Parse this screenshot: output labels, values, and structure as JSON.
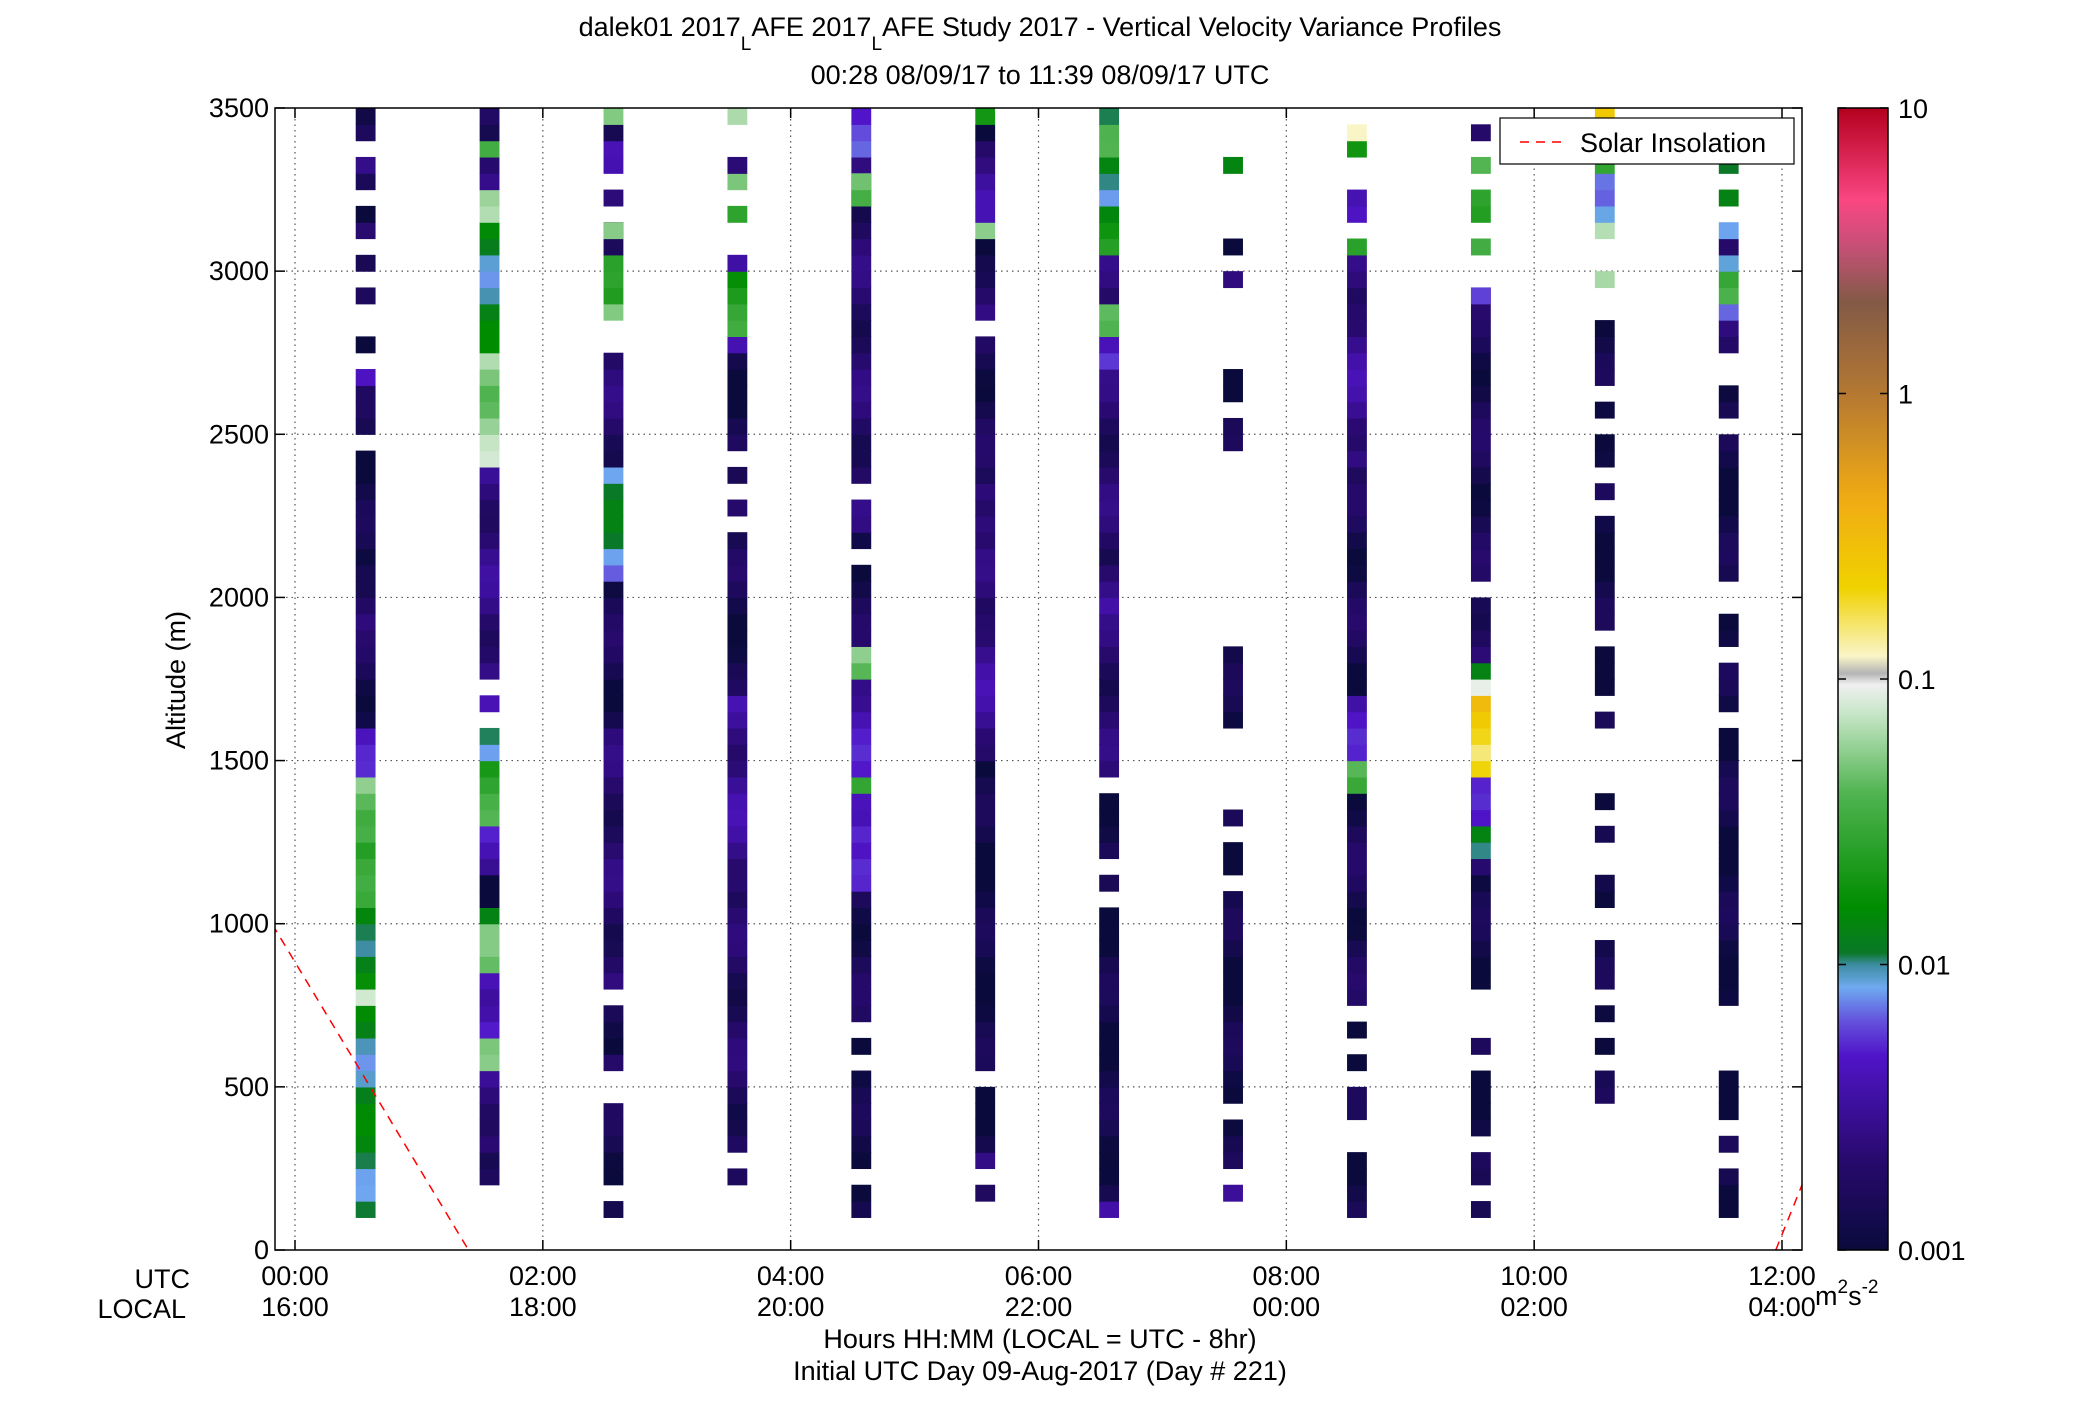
{
  "chart_data": {
    "type": "heatmap",
    "title_line1": {
      "prefix": "dalek01 2017",
      "sub1": "L",
      "middle": "AFE 2017",
      "sub2": "L",
      "suffix": "AFE Study 2017 - Vertical Velocity Variance Profiles"
    },
    "title_line2": "00:28 08/09/17 to 11:39 08/09/17  UTC",
    "ylabel": "Altitude (m)",
    "ylim": [
      0,
      3500
    ],
    "yticks": [
      0,
      500,
      1000,
      1500,
      2000,
      2500,
      3000,
      3500
    ],
    "xlim_hours": [
      0,
      12
    ],
    "xtick_hours": [
      0,
      2,
      4,
      6,
      8,
      10,
      12
    ],
    "xtick_utc": [
      "00:00",
      "02:00",
      "04:00",
      "06:00",
      "08:00",
      "10:00",
      "12:00"
    ],
    "xtick_local": [
      "16:00",
      "18:00",
      "20:00",
      "22:00",
      "00:00",
      "02:00",
      "04:00"
    ],
    "row_label_utc": "UTC",
    "row_label_local": "LOCAL",
    "xlabel_line1": "Hours HH:MM  (LOCAL = UTC - 8hr)",
    "xlabel_line2": "Initial UTC Day 09-Aug-2017 (Day # 221)",
    "legend": {
      "label": "Solar Insolation",
      "color": "#ff0000",
      "position": "top-right"
    },
    "solar_insolation": [
      {
        "segment": "evening",
        "points": [
          [
            -0.25,
            1040
          ],
          [
            1.4,
            0
          ]
        ]
      },
      {
        "segment": "morning",
        "points": [
          [
            11.95,
            0
          ],
          [
            12.3,
            330
          ]
        ]
      }
    ],
    "colorbar": {
      "scale": "log",
      "min": 0.001,
      "max": 10,
      "tick_values": [
        0.001,
        0.01,
        0.1,
        1,
        10
      ],
      "tick_labels": [
        "0.001",
        "0.01",
        "0.1",
        "1",
        "10"
      ],
      "units_base": "m",
      "units_exp1": "2",
      "units_mid": "s",
      "units_exp2": "-2"
    },
    "grid": true,
    "bin_height_m": 50,
    "profile_width_hours": 0.16,
    "profiles": [
      {
        "time_hours": 0.57,
        "segments": [
          [
            100,
            750,
            0.012
          ],
          [
            750,
            800,
            0.06
          ],
          [
            800,
            1050,
            0.015
          ],
          [
            1050,
            1250,
            0.025
          ],
          [
            1250,
            1450,
            0.05
          ],
          [
            1450,
            1600,
            0.004
          ],
          [
            1600,
            1900,
            0.0015
          ],
          [
            1900,
            2100,
            0.002
          ],
          [
            2100,
            2450,
            0.0012
          ],
          [
            2500,
            2650,
            0.0013
          ],
          [
            2650,
            2700,
            0.004
          ],
          [
            2750,
            2800,
            0.0015
          ],
          [
            2900,
            2950,
            0.0013
          ],
          [
            3000,
            3050,
            0.0012
          ],
          [
            3100,
            3150,
            0.003
          ],
          [
            3150,
            3200,
            0.0013
          ],
          [
            3250,
            3300,
            0.0013
          ],
          [
            3300,
            3350,
            0.002
          ],
          [
            3400,
            3500,
            0.0015
          ]
        ]
      },
      {
        "time_hours": 1.57,
        "segments": [
          [
            200,
            300,
            0.0012
          ],
          [
            300,
            550,
            0.0025
          ],
          [
            550,
            650,
            0.04
          ],
          [
            650,
            850,
            0.005
          ],
          [
            850,
            1000,
            0.04
          ],
          [
            1000,
            1050,
            0.012
          ],
          [
            1050,
            1150,
            0.0012
          ],
          [
            1150,
            1300,
            0.004
          ],
          [
            1300,
            1500,
            0.03
          ],
          [
            1500,
            1600,
            0.012
          ],
          [
            1650,
            1700,
            0.003
          ],
          [
            1750,
            2400,
            0.0025
          ],
          [
            2400,
            2750,
            0.06
          ],
          [
            2750,
            3150,
            0.012
          ],
          [
            3150,
            3250,
            0.05
          ],
          [
            3250,
            3350,
            0.003
          ],
          [
            3350,
            3400,
            0.05
          ],
          [
            3400,
            3500,
            0.0015
          ]
        ]
      },
      {
        "time_hours": 2.57,
        "segments": [
          [
            100,
            150,
            0.0013
          ],
          [
            200,
            450,
            0.0013
          ],
          [
            550,
            600,
            0.003
          ],
          [
            600,
            750,
            0.0012
          ],
          [
            800,
            1600,
            0.002
          ],
          [
            1600,
            2050,
            0.0015
          ],
          [
            2050,
            2400,
            0.01
          ],
          [
            2400,
            2750,
            0.002
          ],
          [
            2850,
            2900,
            0.06
          ],
          [
            2900,
            3050,
            0.02
          ],
          [
            3050,
            3150,
            0.0015
          ],
          [
            3100,
            3150,
            0.07
          ],
          [
            3200,
            3250,
            0.003
          ],
          [
            3300,
            3400,
            0.003
          ],
          [
            3400,
            3450,
            0.0012
          ],
          [
            3450,
            3500,
            0.06
          ]
        ]
      },
      {
        "time_hours": 3.57,
        "segments": [
          [
            200,
            250,
            0.0012
          ],
          [
            300,
            1100,
            0.0018
          ],
          [
            1100,
            1700,
            0.003
          ],
          [
            1700,
            2050,
            0.0013
          ],
          [
            2050,
            2200,
            0.0015
          ],
          [
            2250,
            2300,
            0.003
          ],
          [
            2350,
            2400,
            0.0013
          ],
          [
            2450,
            2750,
            0.0013
          ],
          [
            2750,
            2800,
            0.003
          ],
          [
            2800,
            3000,
            0.025
          ],
          [
            3000,
            3050,
            0.005
          ],
          [
            3150,
            3200,
            0.02
          ],
          [
            3250,
            3300,
            0.05
          ],
          [
            3300,
            3350,
            0.003
          ],
          [
            3450,
            3500,
            0.06
          ]
        ]
      },
      {
        "time_hours": 4.57,
        "segments": [
          [
            100,
            200,
            0.0012
          ],
          [
            250,
            550,
            0.0012
          ],
          [
            600,
            650,
            0.0012
          ],
          [
            700,
            1100,
            0.0015
          ],
          [
            1100,
            1250,
            0.004
          ],
          [
            1250,
            1400,
            0.006
          ],
          [
            1400,
            1450,
            0.03
          ],
          [
            1450,
            1750,
            0.004
          ],
          [
            1750,
            1850,
            0.05
          ],
          [
            1850,
            2100,
            0.0015
          ],
          [
            2150,
            2200,
            0.0012
          ],
          [
            2200,
            2300,
            0.002
          ],
          [
            2350,
            3350,
            0.002
          ],
          [
            3200,
            3300,
            0.05
          ],
          [
            3350,
            3500,
            0.005
          ]
        ]
      },
      {
        "time_hours": 5.57,
        "segments": [
          [
            150,
            200,
            0.0015
          ],
          [
            250,
            300,
            0.002
          ],
          [
            300,
            500,
            0.0012
          ],
          [
            550,
            1500,
            0.0012
          ],
          [
            1500,
            1950,
            0.003
          ],
          [
            1950,
            2200,
            0.002
          ],
          [
            2200,
            2350,
            0.003
          ],
          [
            2350,
            2800,
            0.0015
          ],
          [
            2850,
            3050,
            0.002
          ],
          [
            3050,
            3100,
            0.0012
          ],
          [
            3100,
            3150,
            0.05
          ],
          [
            3150,
            3400,
            0.003
          ],
          [
            3400,
            3450,
            0.0012
          ],
          [
            3450,
            3500,
            0.02
          ]
        ]
      },
      {
        "time_hours": 6.57,
        "segments": [
          [
            100,
            150,
            0.003
          ],
          [
            150,
            300,
            0.0015
          ],
          [
            300,
            1050,
            0.0012
          ],
          [
            1100,
            1150,
            0.0012
          ],
          [
            1200,
            1400,
            0.0012
          ],
          [
            1450,
            1950,
            0.002
          ],
          [
            1950,
            2100,
            0.003
          ],
          [
            2100,
            2700,
            0.002
          ],
          [
            2700,
            2800,
            0.005
          ],
          [
            2800,
            2900,
            0.06
          ],
          [
            2900,
            3100,
            0.002
          ],
          [
            3050,
            3200,
            0.02
          ],
          [
            3200,
            3350,
            0.012
          ],
          [
            3350,
            3450,
            0.03
          ],
          [
            3450,
            3500,
            0.01
          ]
        ]
      },
      {
        "time_hours": 7.57,
        "segments": [
          [
            150,
            200,
            0.003
          ],
          [
            250,
            400,
            0.0012
          ],
          [
            450,
            1050,
            0.0012
          ],
          [
            1050,
            1100,
            0.0012
          ],
          [
            1150,
            1250,
            0.0012
          ],
          [
            1300,
            1350,
            0.0012
          ],
          [
            1600,
            1850,
            0.0012
          ],
          [
            2450,
            2550,
            0.0012
          ],
          [
            2600,
            2700,
            0.0012
          ],
          [
            2950,
            3000,
            0.003
          ],
          [
            3050,
            3100,
            0.0012
          ],
          [
            3300,
            3350,
            0.015
          ]
        ]
      },
      {
        "time_hours": 8.57,
        "segments": [
          [
            100,
            300,
            0.0012
          ],
          [
            400,
            500,
            0.0012
          ],
          [
            550,
            600,
            0.0012
          ],
          [
            650,
            700,
            0.0012
          ],
          [
            750,
            1400,
            0.0015
          ],
          [
            1400,
            1500,
            0.04
          ],
          [
            1500,
            1700,
            0.004
          ],
          [
            1700,
            2400,
            0.0015
          ],
          [
            2400,
            2900,
            0.003
          ],
          [
            2900,
            3050,
            0.002
          ],
          [
            3050,
            3100,
            0.02
          ],
          [
            3150,
            3250,
            0.006
          ],
          [
            3350,
            3400,
            0.015
          ],
          [
            3400,
            3450,
            0.09
          ]
        ]
      },
      {
        "time_hours": 9.57,
        "segments": [
          [
            100,
            150,
            0.002
          ],
          [
            200,
            300,
            0.0012
          ],
          [
            350,
            550,
            0.0012
          ],
          [
            600,
            650,
            0.0012
          ],
          [
            800,
            1150,
            0.0012
          ],
          [
            1150,
            1200,
            0.003
          ],
          [
            1200,
            1300,
            0.015
          ],
          [
            1300,
            1450,
            0.004
          ],
          [
            1450,
            1550,
            0.2
          ],
          [
            1550,
            1700,
            0.3
          ],
          [
            1700,
            1750,
            0.07
          ],
          [
            1750,
            1800,
            0.01
          ],
          [
            1800,
            2000,
            0.002
          ],
          [
            2050,
            2950,
            0.0015
          ],
          [
            2900,
            2950,
            0.005
          ],
          [
            3050,
            3100,
            0.05
          ],
          [
            3150,
            3250,
            0.02
          ],
          [
            3300,
            3350,
            0.04
          ],
          [
            3400,
            3450,
            0.003
          ]
        ]
      },
      {
        "time_hours": 10.57,
        "segments": [
          [
            450,
            550,
            0.0012
          ],
          [
            600,
            650,
            0.0012
          ],
          [
            700,
            750,
            0.0012
          ],
          [
            800,
            950,
            0.0012
          ],
          [
            1050,
            1150,
            0.0012
          ],
          [
            1250,
            1300,
            0.0012
          ],
          [
            1350,
            1400,
            0.0012
          ],
          [
            1600,
            1650,
            0.0012
          ],
          [
            1700,
            1850,
            0.0012
          ],
          [
            1900,
            2250,
            0.0012
          ],
          [
            2300,
            2350,
            0.0012
          ],
          [
            2400,
            2500,
            0.0012
          ],
          [
            2550,
            2600,
            0.0012
          ],
          [
            2650,
            2850,
            0.0012
          ],
          [
            2950,
            3000,
            0.06
          ],
          [
            3100,
            3150,
            0.06
          ],
          [
            3150,
            3300,
            0.01
          ],
          [
            3300,
            3350,
            0.03
          ],
          [
            3450,
            3500,
            0.2
          ]
        ]
      },
      {
        "time_hours": 11.57,
        "segments": [
          [
            100,
            250,
            0.0012
          ],
          [
            300,
            350,
            0.0012
          ],
          [
            400,
            550,
            0.0012
          ],
          [
            750,
            1600,
            0.0012
          ],
          [
            1650,
            1800,
            0.0012
          ],
          [
            1850,
            1950,
            0.0012
          ],
          [
            2050,
            2500,
            0.0012
          ],
          [
            2550,
            2650,
            0.0012
          ],
          [
            2750,
            2850,
            0.002
          ],
          [
            2850,
            2900,
            0.005
          ],
          [
            2900,
            3000,
            0.03
          ],
          [
            3000,
            3050,
            0.012
          ],
          [
            3050,
            3100,
            0.003
          ],
          [
            3100,
            3150,
            0.01
          ],
          [
            3200,
            3250,
            0.01
          ],
          [
            3300,
            3350,
            0.01
          ]
        ]
      }
    ]
  }
}
